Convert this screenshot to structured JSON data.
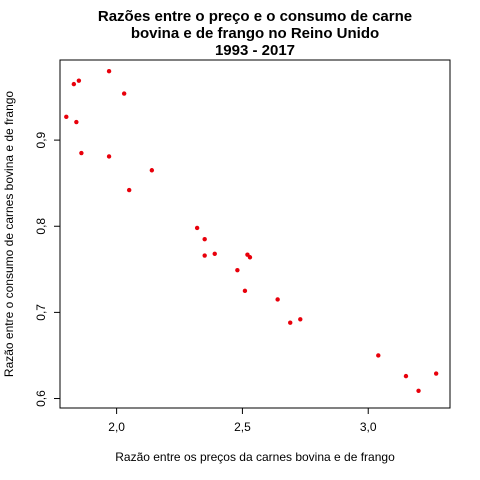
{
  "chart_data": {
    "type": "scatter",
    "title": [
      "Razões entre o preço e o consumo de carne",
      "bovina e de frango no Reino Unido",
      "1993 - 2017"
    ],
    "xlabel": "Razão entre os preços da carnes bovina e de frango",
    "ylabel": "Razão entre o consumo de carnes bovina e de frango",
    "xlim": [
      1.775,
      3.325
    ],
    "ylim": [
      0.589,
      0.993
    ],
    "x_ticks": [
      {
        "value": 2.0,
        "label": "2,0"
      },
      {
        "value": 2.5,
        "label": "2,5"
      },
      {
        "value": 3.0,
        "label": "3,0"
      }
    ],
    "y_ticks": [
      {
        "value": 0.6,
        "label": "0,6"
      },
      {
        "value": 0.7,
        "label": "0,7"
      },
      {
        "value": 0.8,
        "label": "0,8"
      },
      {
        "value": 0.9,
        "label": "0,9"
      }
    ],
    "point_color": "#e8000b",
    "grid": false,
    "points": [
      {
        "x": 1.8,
        "y": 0.927
      },
      {
        "x": 1.83,
        "y": 0.965
      },
      {
        "x": 1.85,
        "y": 0.969
      },
      {
        "x": 1.84,
        "y": 0.921
      },
      {
        "x": 1.86,
        "y": 0.885
      },
      {
        "x": 1.97,
        "y": 0.98
      },
      {
        "x": 1.97,
        "y": 0.881
      },
      {
        "x": 2.03,
        "y": 0.954
      },
      {
        "x": 2.05,
        "y": 0.842
      },
      {
        "x": 2.14,
        "y": 0.865
      },
      {
        "x": 2.32,
        "y": 0.798
      },
      {
        "x": 2.35,
        "y": 0.785
      },
      {
        "x": 2.35,
        "y": 0.766
      },
      {
        "x": 2.39,
        "y": 0.768
      },
      {
        "x": 2.48,
        "y": 0.749
      },
      {
        "x": 2.52,
        "y": 0.767
      },
      {
        "x": 2.53,
        "y": 0.764
      },
      {
        "x": 2.51,
        "y": 0.725
      },
      {
        "x": 2.64,
        "y": 0.715
      },
      {
        "x": 2.69,
        "y": 0.688
      },
      {
        "x": 2.73,
        "y": 0.692
      },
      {
        "x": 3.04,
        "y": 0.65
      },
      {
        "x": 3.15,
        "y": 0.626
      },
      {
        "x": 3.2,
        "y": 0.609
      },
      {
        "x": 3.27,
        "y": 0.629
      }
    ]
  }
}
